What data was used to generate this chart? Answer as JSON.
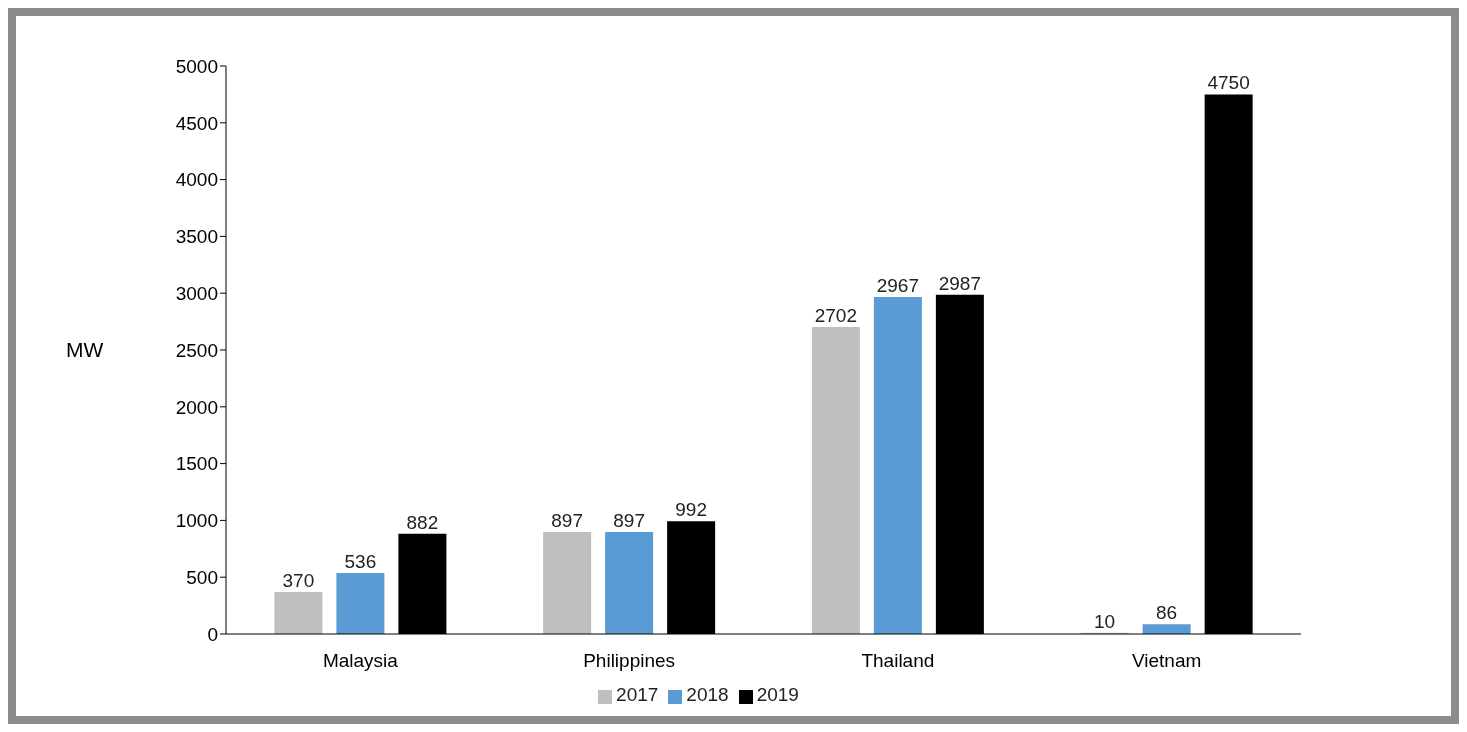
{
  "chart_data": {
    "type": "bar",
    "ylabel": "MW",
    "categories": [
      "Malaysia",
      "Philippines",
      "Thailand",
      "Vietnam"
    ],
    "series": [
      {
        "name": "2017",
        "color": "#bfbfbf",
        "values": [
          370,
          897,
          2702,
          10
        ]
      },
      {
        "name": "2018",
        "color": "#5b9bd5",
        "values": [
          536,
          897,
          2967,
          86
        ]
      },
      {
        "name": "2019",
        "color": "#000000",
        "values": [
          882,
          992,
          2987,
          4750
        ]
      }
    ],
    "ylim": [
      0,
      5000
    ],
    "yticks": [
      0,
      500,
      1000,
      1500,
      2000,
      2500,
      3000,
      3500,
      4000,
      4500,
      5000
    ],
    "grid": false,
    "legend": "bottom",
    "data_labels": true
  }
}
